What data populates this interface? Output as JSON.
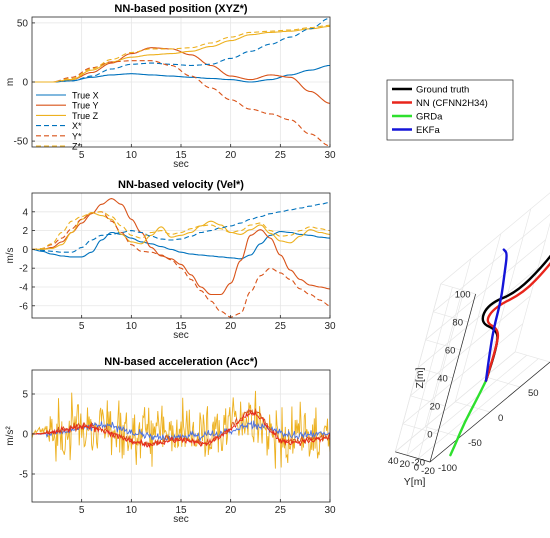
{
  "colors": {
    "blue": "#0072BD",
    "orange": "#D95319",
    "yellow": "#EDB120",
    "acc_blue": "#4A6FE0",
    "gt": "#000000",
    "nn": "#E8251B",
    "grda": "#2EE02E",
    "ekfa": "#1515D8",
    "grid": "#E6E6E6",
    "axis": "#262626"
  },
  "chart_data": [
    {
      "type": "line",
      "title": "NN-based position (XYZ*)",
      "xlabel": "sec",
      "ylabel": "m",
      "xlim": [
        0,
        30
      ],
      "ylim": [
        -55,
        55
      ],
      "xticks": [
        5,
        10,
        15,
        20,
        25,
        30
      ],
      "yticks": [
        -50,
        0,
        50
      ],
      "grid": true,
      "legend_position": "bottom-left",
      "legend": [
        "True X",
        "True Y",
        "True Z",
        "X*",
        "Y*",
        "Z*"
      ],
      "x": [
        0,
        2,
        4,
        6,
        8,
        10,
        12,
        14,
        16,
        18,
        20,
        22,
        24,
        26,
        28,
        30
      ],
      "series": [
        {
          "name": "True X",
          "color": "blue",
          "dash": false,
          "values": [
            0,
            0,
            1,
            4,
            6,
            7,
            6,
            5,
            4,
            3,
            2,
            0,
            2,
            6,
            10,
            14
          ]
        },
        {
          "name": "True Y",
          "color": "orange",
          "dash": false,
          "values": [
            0,
            0,
            2,
            8,
            16,
            24,
            29,
            28,
            23,
            14,
            5,
            2,
            6,
            4,
            -8,
            -18
          ]
        },
        {
          "name": "True Z",
          "color": "yellow",
          "dash": false,
          "values": [
            0,
            0,
            2,
            10,
            17,
            21,
            23,
            24,
            26,
            30,
            35,
            40,
            42,
            43,
            45,
            47
          ]
        },
        {
          "name": "X*",
          "color": "blue",
          "dash": true,
          "values": [
            0,
            0,
            1,
            5,
            11,
            15,
            16,
            15,
            14,
            15,
            20,
            26,
            32,
            38,
            45,
            54
          ]
        },
        {
          "name": "Y*",
          "color": "orange",
          "dash": true,
          "values": [
            0,
            0,
            4,
            12,
            17,
            18,
            18,
            14,
            5,
            -5,
            -15,
            -23,
            -27,
            -32,
            -44,
            -54
          ]
        },
        {
          "name": "Z*",
          "color": "yellow",
          "dash": true,
          "values": [
            0,
            0,
            3,
            11,
            19,
            25,
            28,
            28,
            29,
            33,
            38,
            42,
            43,
            44,
            46,
            48
          ]
        }
      ]
    },
    {
      "type": "line",
      "title": "NN-based velocity (Vel*)",
      "xlabel": "sec",
      "ylabel": "m/s",
      "xlim": [
        0,
        30
      ],
      "ylim": [
        -7.3,
        6
      ],
      "xticks": [
        5,
        10,
        15,
        20,
        25,
        30
      ],
      "yticks": [
        -6,
        -4,
        -2,
        0,
        2,
        4
      ],
      "grid": true,
      "x": [
        0,
        1,
        2,
        3,
        4,
        5,
        6,
        7,
        8,
        9,
        10,
        11,
        12,
        13,
        14,
        15,
        16,
        17,
        18,
        19,
        20,
        21,
        22,
        23,
        24,
        25,
        26,
        27,
        28,
        29,
        30
      ],
      "series": [
        {
          "name": "True X",
          "color": "blue",
          "dash": false,
          "values": [
            0,
            -0.2,
            -0.5,
            -0.7,
            -0.8,
            -0.8,
            -0.3,
            1.0,
            1.8,
            1.6,
            1.2,
            0.8,
            0.6,
            0.3,
            0.0,
            -0.3,
            -0.5,
            -0.6,
            -0.7,
            -0.8,
            -0.9,
            -1.0,
            -0.6,
            0.6,
            1.5,
            1.9,
            1.8,
            1.6,
            1.5,
            1.3,
            1.2
          ]
        },
        {
          "name": "True Y",
          "color": "orange",
          "dash": false,
          "values": [
            0,
            0,
            0.2,
            0.8,
            1.8,
            2.8,
            3.8,
            4.8,
            5.4,
            4.8,
            3.2,
            1.8,
            0.2,
            -0.7,
            -1.0,
            -1.6,
            -2.7,
            -4.0,
            -4.8,
            -4.8,
            -3.6,
            -1.2,
            1.5,
            2.1,
            1.2,
            -0.6,
            -2.2,
            -3.2,
            -3.8,
            -4.0,
            -4.2
          ]
        },
        {
          "name": "True Z",
          "color": "yellow",
          "dash": false,
          "values": [
            0,
            0,
            0.1,
            0.5,
            1.8,
            3.2,
            3.9,
            3.6,
            3.2,
            1.6,
            0.8,
            0.6,
            1.5,
            2.4,
            1.3,
            1.5,
            1.8,
            2.5,
            3.0,
            2.6,
            1.8,
            1.6,
            2.1,
            2.6,
            1.7,
            0.9,
            0.7,
            1.4,
            2.1,
            1.8,
            1.6
          ]
        },
        {
          "name": "X*",
          "color": "blue",
          "dash": true,
          "values": [
            0,
            -0.1,
            -0.2,
            -0.3,
            -0.3,
            0.2,
            1.0,
            1.5,
            1.6,
            1.8,
            2.0,
            1.8,
            1.4,
            1.1,
            1.0,
            1.1,
            1.4,
            1.8,
            2.0,
            2.3,
            2.5,
            2.8,
            3.2,
            3.5,
            3.8,
            4.0,
            4.2,
            4.4,
            4.6,
            4.8,
            5.0
          ]
        },
        {
          "name": "Y*",
          "color": "orange",
          "dash": true,
          "values": [
            0,
            0.1,
            0.5,
            1.2,
            2.2,
            3.2,
            3.9,
            4.0,
            3.0,
            1.8,
            0.5,
            -0.2,
            -0.3,
            -0.6,
            -1.1,
            -2.0,
            -3.2,
            -4.4,
            -5.5,
            -6.6,
            -7.2,
            -6.8,
            -4.5,
            -2.8,
            -2.0,
            -2.5,
            -3.2,
            -4.2,
            -4.8,
            -5.4,
            -6.0
          ]
        },
        {
          "name": "Z*",
          "color": "yellow",
          "dash": true,
          "values": [
            0,
            0.1,
            0.6,
            1.8,
            3.0,
            3.5,
            3.9,
            4.0,
            3.5,
            2.5,
            1.5,
            1.2,
            1.8,
            2.0,
            1.6,
            1.8,
            2.2,
            2.5,
            2.6,
            2.2,
            1.8,
            2.0,
            2.6,
            2.8,
            2.0,
            1.4,
            1.5,
            2.0,
            2.4,
            2.2,
            2.0
          ]
        }
      ]
    },
    {
      "type": "line",
      "title": "NN-based acceleration (Acc*)",
      "xlabel": "sec",
      "ylabel": "m/s²",
      "xlim": [
        0,
        30
      ],
      "ylim": [
        -8.5,
        8
      ],
      "xticks": [
        5,
        10,
        15,
        20,
        25,
        30
      ],
      "yticks": [
        -5,
        0,
        5
      ],
      "grid": true,
      "x": [
        0,
        1,
        2,
        3,
        4,
        5,
        6,
        7,
        8,
        9,
        10,
        11,
        12,
        13,
        14,
        15,
        16,
        17,
        18,
        19,
        20,
        21,
        22,
        23,
        24,
        25,
        26,
        27,
        28,
        29,
        30
      ],
      "series": [
        {
          "name": "noisy",
          "color": "yellow",
          "dash": false,
          "noise": 2.6,
          "values": [
            0,
            0.5,
            0.4,
            0.6,
            0.8,
            0.6,
            0.3,
            0.2,
            -0.2,
            -0.5,
            -0.6,
            -0.3,
            0.2,
            0.3,
            -0.2,
            -0.4,
            -0.4,
            -0.6,
            -0.5,
            0.0,
            0.8,
            1.5,
            2.6,
            1.0,
            -0.8,
            -1.0,
            -0.6,
            -0.5,
            -0.3,
            -0.2,
            -0.1
          ]
        },
        {
          "name": "acc blue",
          "color": "acc_blue",
          "dash": false,
          "noise": 0.35,
          "values": [
            0,
            0.0,
            0.1,
            0.2,
            0.5,
            0.8,
            1.0,
            1.2,
            1.0,
            0.6,
            0.2,
            -0.1,
            -0.3,
            -0.4,
            -0.5,
            -0.4,
            -0.3,
            -0.2,
            -0.1,
            0.0,
            0.3,
            0.8,
            1.2,
            1.0,
            0.5,
            0.0,
            -0.2,
            -0.2,
            -0.1,
            0.0,
            0.1
          ]
        },
        {
          "name": "acc orange",
          "color": "orange",
          "dash": false,
          "noise": 0.3,
          "values": [
            0,
            0.1,
            0.3,
            0.5,
            0.8,
            1.0,
            0.9,
            0.6,
            0.2,
            -0.3,
            -0.8,
            -1.1,
            -1.2,
            -1.0,
            -0.6,
            -0.5,
            -0.8,
            -1.1,
            -0.9,
            -0.2,
            0.8,
            2.0,
            3.0,
            2.4,
            0.6,
            -0.6,
            -0.9,
            -0.8,
            -0.6,
            -0.4,
            -0.3
          ]
        },
        {
          "name": "acc red",
          "color": "nn",
          "dash": false,
          "noise": 0.25,
          "values": [
            0,
            0.0,
            0.2,
            0.4,
            0.7,
            0.9,
            0.8,
            0.5,
            0.1,
            -0.4,
            -0.9,
            -1.2,
            -1.3,
            -1.1,
            -0.7,
            -0.6,
            -0.9,
            -1.2,
            -1.0,
            -0.3,
            0.6,
            1.8,
            2.7,
            2.1,
            0.4,
            -0.8,
            -1.1,
            -1.0,
            -0.8,
            -0.6,
            -0.4
          ]
        }
      ]
    },
    {
      "type": "line3d",
      "axes": {
        "x": {
          "label": "X[m]",
          "range": [
            -100,
            100
          ],
          "ticks": [
            -100,
            -50,
            0,
            50,
            100
          ]
        },
        "y": {
          "label": "Y[m]",
          "range": [
            -20,
            40
          ],
          "ticks": [
            -20,
            0,
            20,
            40
          ]
        },
        "z": {
          "label": "Z[m]",
          "range": [
            -20,
            100
          ],
          "ticks": [
            -20,
            0,
            20,
            40,
            60,
            80,
            100
          ]
        }
      },
      "grid": true,
      "legend_position": "top",
      "legend": [
        "Ground truth",
        "NN (CFNN2H34)",
        "GRDa",
        "EKFa"
      ],
      "series": [
        {
          "name": "Ground truth",
          "color": "gt",
          "points": [
            [
              0,
              0,
              0
            ],
            [
              10,
              5,
              20
            ],
            [
              -10,
              -5,
              40
            ],
            [
              -40,
              5,
              55
            ],
            [
              -20,
              15,
              60
            ],
            [
              20,
              5,
              55
            ],
            [
              50,
              -5,
              65
            ],
            [
              80,
              0,
              70
            ],
            [
              90,
              5,
              65
            ]
          ]
        },
        {
          "name": "NN (CFNN2H34)",
          "color": "nn",
          "points": [
            [
              0,
              0,
              0
            ],
            [
              8,
              4,
              22
            ],
            [
              -8,
              -4,
              40
            ],
            [
              -30,
              5,
              52
            ],
            [
              -10,
              10,
              55
            ],
            [
              30,
              0,
              52
            ],
            [
              60,
              -5,
              60
            ],
            [
              85,
              0,
              64
            ],
            [
              95,
              3,
              62
            ]
          ]
        },
        {
          "name": "GRDa",
          "color": "grda",
          "points": [
            [
              0,
              0,
              0
            ],
            [
              -5,
              3,
              -12
            ],
            [
              -15,
              5,
              -25
            ],
            [
              -22,
              5,
              -38
            ],
            [
              -25,
              6,
              -45
            ]
          ]
        },
        {
          "name": "EKFa",
          "color": "ekfa",
          "points": [
            [
              0,
              0,
              0
            ],
            [
              -5,
              2,
              20
            ],
            [
              -10,
              3,
              40
            ],
            [
              -8,
              5,
              60
            ],
            [
              -12,
              8,
              80
            ],
            [
              -15,
              10,
              95
            ],
            [
              -22,
              12,
              100
            ]
          ]
        }
      ]
    }
  ]
}
